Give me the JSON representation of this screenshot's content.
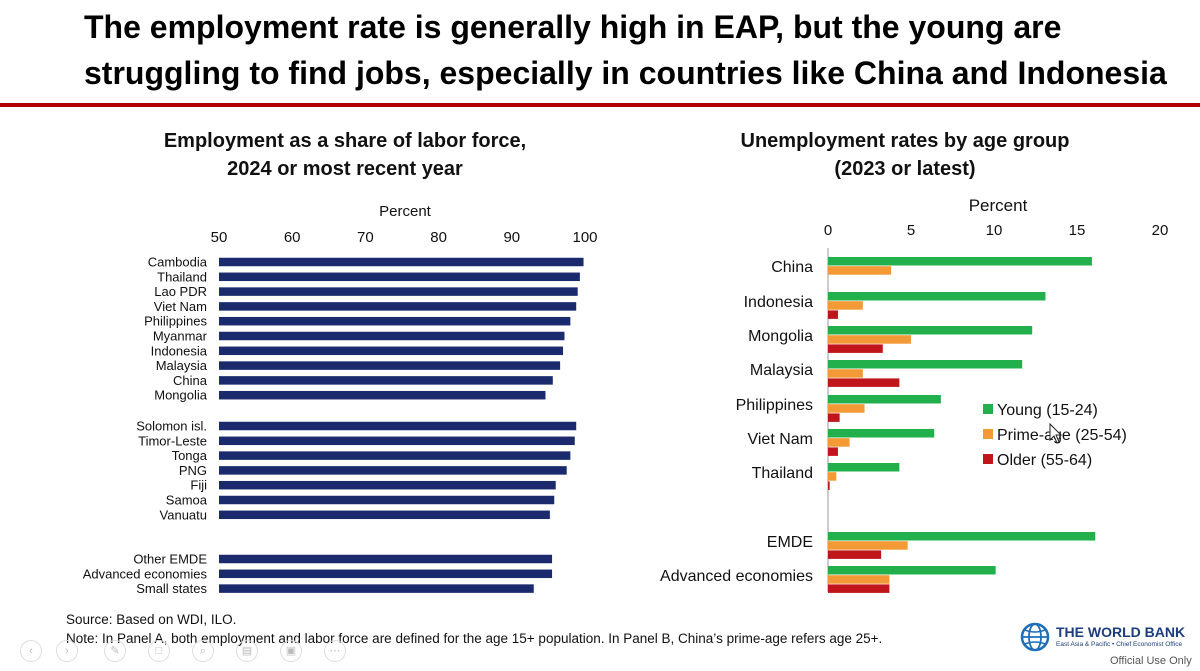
{
  "headline": {
    "line1": "The employment rate is generally high in EAP,  but the young are",
    "line2": "struggling to find jobs, especially in countries like China and Indonesia"
  },
  "panel_a_title": [
    "Employment as a share of labor force,",
    "2024 or most recent year"
  ],
  "panel_b_title": [
    "Unemployment rates by age group",
    "(2023 or latest)"
  ],
  "source": "Source: Based on WDI, ILO.",
  "note": "Note: In Panel A, both employment and labor force are defined for the age 15+ population. In Panel B, China’s prime-age refers age 25+.",
  "logo": {
    "name": "THE WORLD BANK",
    "sub": "East Asia & Pacific • Chief Economist Office"
  },
  "official": "Official Use Only",
  "colors": {
    "navy": "#1a2a6c",
    "green": "#21b04b",
    "orange": "#f39a36",
    "red": "#c0161b",
    "rule": "#b00000"
  },
  "chart_data": [
    {
      "type": "bar",
      "orientation": "horizontal",
      "title": "Employment as a share of labor force, 2024 or most recent year",
      "xlabel": "Percent",
      "xlim": [
        50,
        100
      ],
      "ticks": [
        50,
        60,
        70,
        80,
        90,
        100
      ],
      "groups": [
        {
          "categories": [
            "Cambodia",
            "Thailand",
            "Lao PDR",
            "Viet Nam",
            "Philippines",
            "Myanmar",
            "Indonesia",
            "Malaysia",
            "China",
            "Mongolia"
          ],
          "values": [
            99.8,
            99.3,
            99.0,
            98.8,
            98.0,
            97.2,
            97.0,
            96.6,
            95.6,
            94.6
          ]
        },
        {
          "categories": [
            "Solomon isl.",
            "Timor-Leste",
            "Tonga",
            "PNG",
            "Fiji",
            "Samoa",
            "Vanuatu"
          ],
          "values": [
            98.8,
            98.6,
            98.0,
            97.5,
            96.0,
            95.8,
            95.2
          ]
        },
        {
          "categories": [
            "Other EMDE",
            "Advanced economies",
            "Small states"
          ],
          "values": [
            95.5,
            95.5,
            93.0
          ]
        }
      ]
    },
    {
      "type": "bar",
      "orientation": "horizontal",
      "title": "Unemployment rates by age group (2023 or latest)",
      "xlabel": "Percent",
      "xlim": [
        0,
        20
      ],
      "ticks": [
        0,
        5,
        10,
        15,
        20
      ],
      "categories": [
        "China",
        "Indonesia",
        "Mongolia",
        "Malaysia",
        "Philippines",
        "Viet Nam",
        "Thailand",
        "",
        "EMDE",
        "Advanced economies"
      ],
      "series": [
        {
          "name": "Young (15-24)",
          "values": [
            15.9,
            13.1,
            12.3,
            11.7,
            6.8,
            6.4,
            4.3,
            null,
            16.1,
            10.1
          ]
        },
        {
          "name": "Prime-age (25-54)",
          "values": [
            3.8,
            2.1,
            5.0,
            2.1,
            2.2,
            1.3,
            0.5,
            null,
            4.8,
            3.7
          ]
        },
        {
          "name": "Older (55-64)",
          "values": [
            null,
            0.6,
            3.3,
            4.3,
            0.7,
            0.6,
            0.1,
            null,
            3.2,
            3.7
          ]
        }
      ],
      "legend": [
        "Young (15-24)",
        "Prime-age (25-54)",
        "Older (55-64)"
      ],
      "legend_position": "right-middle"
    }
  ]
}
